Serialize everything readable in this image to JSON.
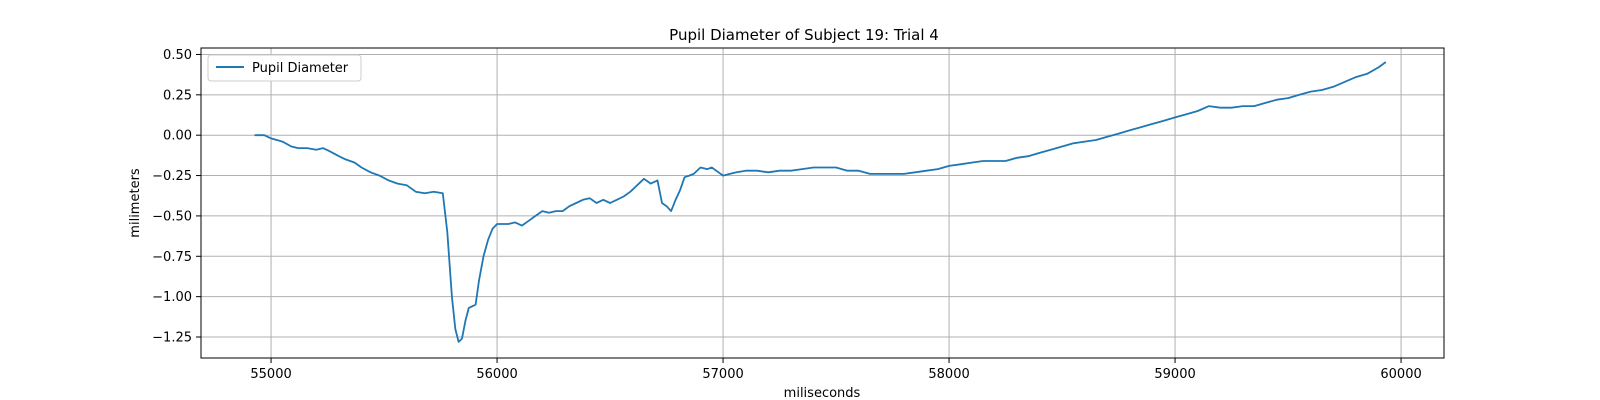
{
  "chart_data": {
    "type": "line",
    "title": "Pupil Diameter of Subject 19: Trial 4",
    "xlabel": "miliseconds",
    "ylabel": "milimeters",
    "xlim": [
      54690,
      60190
    ],
    "ylim": [
      -1.38,
      0.54
    ],
    "xticks": [
      55000,
      56000,
      57000,
      58000,
      59000,
      60000
    ],
    "xtick_labels": [
      "55000",
      "56000",
      "57000",
      "58000",
      "59000",
      "60000"
    ],
    "yticks": [
      0.5,
      0.25,
      0.0,
      -0.25,
      -0.5,
      -0.75,
      -1.0,
      -1.25
    ],
    "ytick_labels": [
      "0.50",
      "0.25",
      "0.00",
      "−0.25",
      "−0.50",
      "−0.75",
      "−1.00",
      "−1.25"
    ],
    "grid": true,
    "legend": {
      "position": "top-left"
    },
    "series": [
      {
        "name": "Pupil Diameter",
        "color": "#1f77b4",
        "x": [
          54930,
          54970,
          55000,
          55050,
          55090,
          55120,
          55160,
          55200,
          55230,
          55260,
          55300,
          55330,
          55370,
          55400,
          55440,
          55480,
          55520,
          55560,
          55600,
          55640,
          55680,
          55720,
          55760,
          55780,
          55800,
          55815,
          55830,
          55845,
          55860,
          55875,
          55890,
          55905,
          55920,
          55940,
          55960,
          55980,
          56000,
          56020,
          56050,
          56080,
          56110,
          56140,
          56170,
          56200,
          56230,
          56260,
          56290,
          56320,
          56350,
          56380,
          56410,
          56440,
          56470,
          56500,
          56530,
          56560,
          56590,
          56620,
          56650,
          56680,
          56710,
          56730,
          56750,
          56770,
          56790,
          56810,
          56830,
          56850,
          56870,
          56900,
          56930,
          56950,
          56980,
          57000,
          57030,
          57060,
          57100,
          57150,
          57200,
          57250,
          57300,
          57350,
          57400,
          57450,
          57500,
          57550,
          57600,
          57650,
          57700,
          57750,
          57800,
          57850,
          57900,
          57950,
          58000,
          58050,
          58100,
          58150,
          58200,
          58250,
          58300,
          58350,
          58400,
          58450,
          58500,
          58550,
          58600,
          58650,
          58700,
          58750,
          58800,
          58850,
          58900,
          58950,
          59000,
          59050,
          59100,
          59150,
          59200,
          59250,
          59300,
          59350,
          59400,
          59450,
          59500,
          59550,
          59600,
          59650,
          59700,
          59750,
          59800,
          59850,
          59900,
          59930
        ],
        "y": [
          0.0,
          0.0,
          -0.02,
          -0.04,
          -0.07,
          -0.08,
          -0.08,
          -0.09,
          -0.08,
          -0.1,
          -0.13,
          -0.15,
          -0.17,
          -0.2,
          -0.23,
          -0.25,
          -0.28,
          -0.3,
          -0.31,
          -0.35,
          -0.36,
          -0.35,
          -0.36,
          -0.6,
          -1.0,
          -1.2,
          -1.28,
          -1.26,
          -1.15,
          -1.07,
          -1.06,
          -1.05,
          -0.9,
          -0.75,
          -0.65,
          -0.58,
          -0.55,
          -0.55,
          -0.55,
          -0.54,
          -0.56,
          -0.53,
          -0.5,
          -0.47,
          -0.48,
          -0.47,
          -0.47,
          -0.44,
          -0.42,
          -0.4,
          -0.39,
          -0.42,
          -0.4,
          -0.42,
          -0.4,
          -0.38,
          -0.35,
          -0.31,
          -0.27,
          -0.3,
          -0.28,
          -0.42,
          -0.44,
          -0.47,
          -0.4,
          -0.34,
          -0.26,
          -0.25,
          -0.24,
          -0.2,
          -0.21,
          -0.2,
          -0.23,
          -0.25,
          -0.24,
          -0.23,
          -0.22,
          -0.22,
          -0.23,
          -0.22,
          -0.22,
          -0.21,
          -0.2,
          -0.2,
          -0.2,
          -0.22,
          -0.22,
          -0.24,
          -0.24,
          -0.24,
          -0.24,
          -0.23,
          -0.22,
          -0.21,
          -0.19,
          -0.18,
          -0.17,
          -0.16,
          -0.16,
          -0.16,
          -0.14,
          -0.13,
          -0.11,
          -0.09,
          -0.07,
          -0.05,
          -0.04,
          -0.03,
          -0.01,
          0.01,
          0.03,
          0.05,
          0.07,
          0.09,
          0.11,
          0.13,
          0.15,
          0.18,
          0.17,
          0.17,
          0.18,
          0.18,
          0.2,
          0.22,
          0.23,
          0.25,
          0.27,
          0.28,
          0.3,
          0.33,
          0.36,
          0.38,
          0.42,
          0.45
        ]
      }
    ]
  }
}
